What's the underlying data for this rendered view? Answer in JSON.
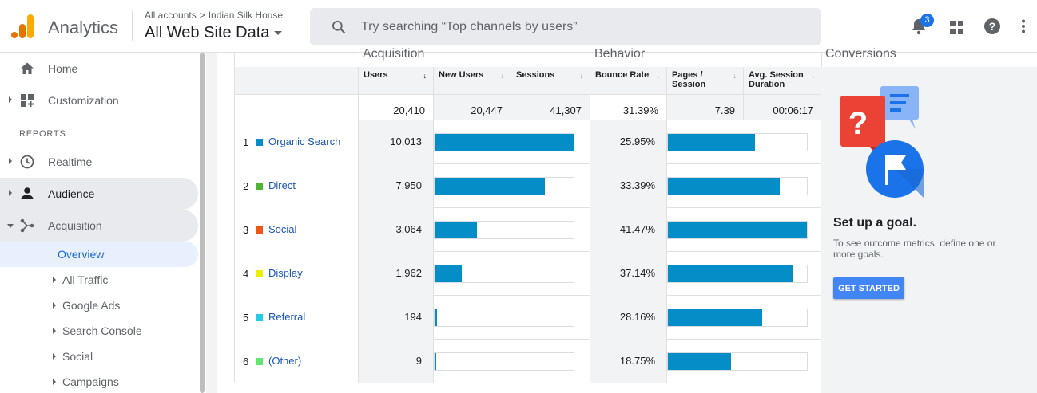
{
  "header": {
    "app_name": "Analytics",
    "breadcrumb": {
      "root": "All accounts",
      "account": "Indian Silk House"
    },
    "property": "All Web Site Data",
    "search_placeholder": "Try searching “Top channels by users”",
    "notification_count": "3"
  },
  "sidebar": {
    "home": "Home",
    "customization": "Customization",
    "reports_label": "REPORTS",
    "realtime": "Realtime",
    "audience": "Audience",
    "acquisition": "Acquisition",
    "sub_items": {
      "overview": "Overview",
      "all_traffic": "All Traffic",
      "google_ads": "Google Ads",
      "search_console": "Search Console",
      "social": "Social",
      "campaigns": "Campaigns"
    }
  },
  "table": {
    "groups": {
      "acquisition": "Acquisition",
      "behavior": "Behavior",
      "conversions": "Conversions"
    },
    "columns": {
      "users": "Users",
      "new_users": "New Users",
      "sessions": "Sessions",
      "bounce_rate": "Bounce Rate",
      "pages_session": "Pages / Session",
      "avg_session": "Avg. Session Duration"
    },
    "totals": {
      "users": "20,410",
      "new_users": "20,447",
      "sessions": "41,307",
      "bounce_rate": "31.39%",
      "pages_session": "7.39",
      "avg_session": "00:06:17"
    },
    "rows": [
      {
        "rank": "1",
        "channel": "Organic Search",
        "color": "#058dc7",
        "users": "10,013",
        "users_value": 10013,
        "bounce": "25.95%",
        "bounce_value": 25.95
      },
      {
        "rank": "2",
        "channel": "Direct",
        "color": "#50b432",
        "users": "7,950",
        "users_value": 7950,
        "bounce": "33.39%",
        "bounce_value": 33.39
      },
      {
        "rank": "3",
        "channel": "Social",
        "color": "#ed561b",
        "users": "3,064",
        "users_value": 3064,
        "bounce": "41.47%",
        "bounce_value": 41.47
      },
      {
        "rank": "4",
        "channel": "Display",
        "color": "#edef00",
        "users": "1,962",
        "users_value": 1962,
        "bounce": "37.14%",
        "bounce_value": 37.14
      },
      {
        "rank": "5",
        "channel": "Referral",
        "color": "#24cbe5",
        "users": "194",
        "users_value": 194,
        "bounce": "28.16%",
        "bounce_value": 28.16
      },
      {
        "rank": "6",
        "channel": "(Other)",
        "color": "#64e572",
        "users": "9",
        "users_value": 9,
        "bounce": "18.75%",
        "bounce_value": 18.75
      }
    ],
    "bar_fill_color": "#058dc7"
  },
  "conversions": {
    "title": "Set up a goal.",
    "description": "To see outcome metrics, define one or more goals.",
    "button": "GET STARTED"
  }
}
